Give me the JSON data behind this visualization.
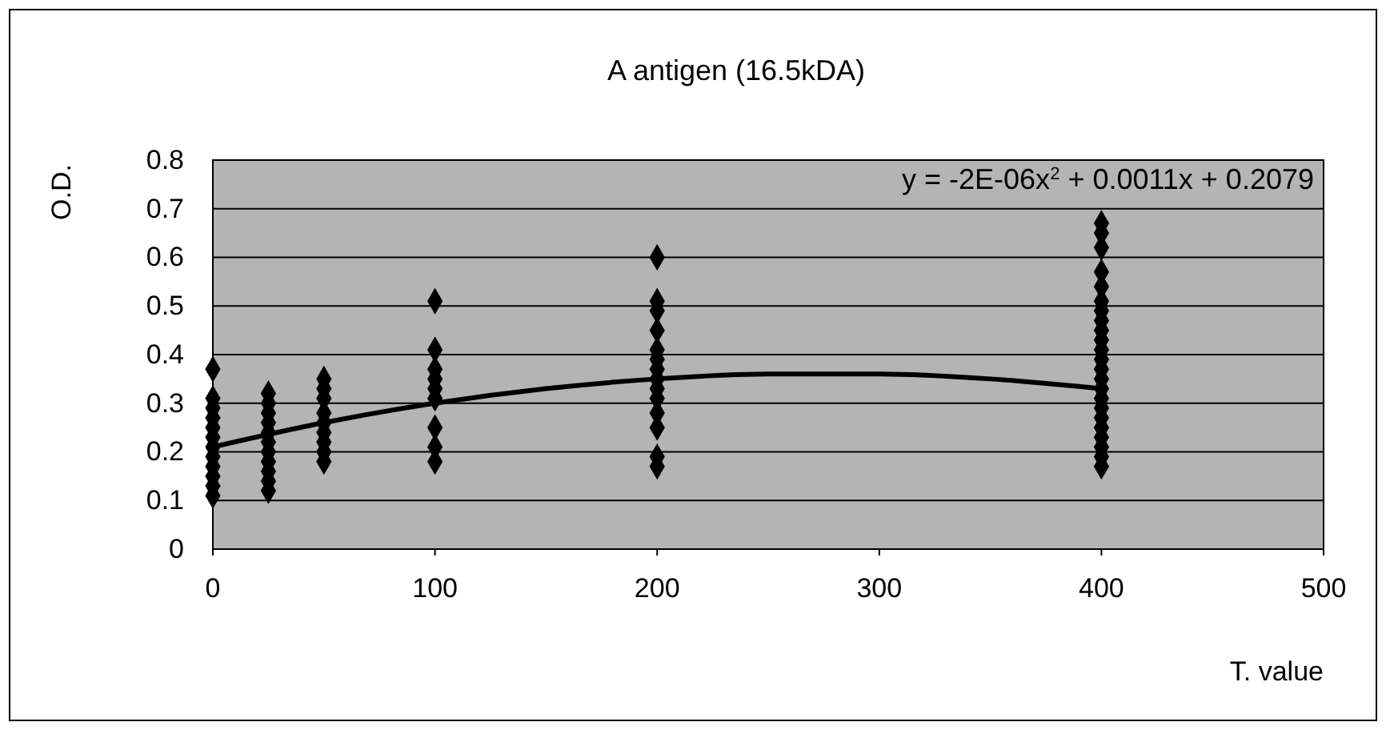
{
  "chart_data": {
    "type": "scatter",
    "title": "A antigen (16.5kDA)",
    "xlabel": "T. value",
    "ylabel": "O.D.",
    "xlim": [
      0,
      500
    ],
    "xticks": [
      0,
      100,
      200,
      300,
      400,
      500
    ],
    "ylim": [
      0,
      0.8
    ],
    "yticks": [
      0,
      0.1,
      0.2,
      0.3,
      0.4,
      0.5,
      0.6,
      0.7,
      0.8
    ],
    "grid": "y",
    "marker": "diamond",
    "series": [
      {
        "color": "#000000",
        "x": [
          0,
          0,
          0,
          0,
          0,
          0,
          0,
          0,
          0,
          0,
          0,
          0,
          25,
          25,
          25,
          25,
          25,
          25,
          25,
          25,
          25,
          25,
          25,
          50,
          50,
          50,
          50,
          50,
          50,
          50,
          50,
          50,
          100,
          100,
          100,
          100,
          100,
          100,
          100,
          100,
          100,
          200,
          200,
          200,
          200,
          200,
          200,
          200,
          200,
          200,
          200,
          200,
          200,
          200,
          200,
          400,
          400,
          400,
          400,
          400,
          400,
          400,
          400,
          400,
          400,
          400,
          400,
          400,
          400,
          400,
          400,
          400,
          400,
          400,
          400,
          400,
          400,
          400
        ],
        "values": [
          0.11,
          0.13,
          0.15,
          0.17,
          0.19,
          0.21,
          0.23,
          0.25,
          0.27,
          0.29,
          0.31,
          0.37,
          0.12,
          0.14,
          0.16,
          0.18,
          0.2,
          0.22,
          0.24,
          0.26,
          0.28,
          0.3,
          0.32,
          0.18,
          0.2,
          0.22,
          0.24,
          0.26,
          0.28,
          0.31,
          0.33,
          0.35,
          0.18,
          0.21,
          0.25,
          0.31,
          0.33,
          0.35,
          0.37,
          0.41,
          0.51,
          0.17,
          0.19,
          0.25,
          0.28,
          0.31,
          0.33,
          0.35,
          0.37,
          0.39,
          0.41,
          0.45,
          0.49,
          0.51,
          0.6,
          0.17,
          0.19,
          0.21,
          0.23,
          0.25,
          0.27,
          0.29,
          0.31,
          0.33,
          0.35,
          0.37,
          0.39,
          0.41,
          0.43,
          0.45,
          0.47,
          0.49,
          0.51,
          0.54,
          0.57,
          0.62,
          0.65,
          0.67
        ]
      },
      {
        "type": "line",
        "marker": "none",
        "color": "#000000",
        "x": [
          0,
          50,
          100,
          150,
          200,
          250,
          300,
          350,
          400
        ],
        "values": [
          0.21,
          0.26,
          0.3,
          0.33,
          0.35,
          0.36,
          0.36,
          0.35,
          0.33
        ]
      }
    ],
    "annotations": [
      "y = -2E-06x$^{2}$ + 0.0011x + 0.2079"
    ]
  }
}
